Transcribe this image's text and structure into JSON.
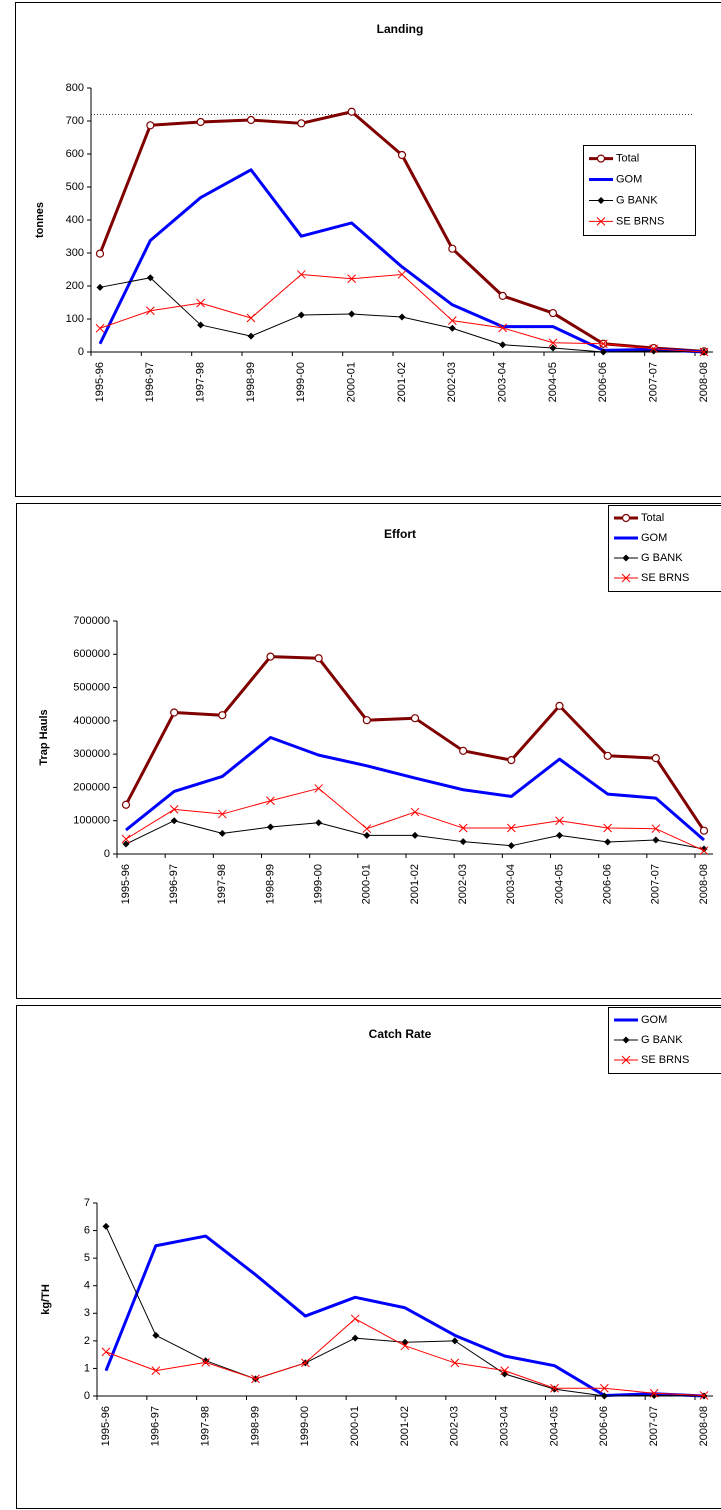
{
  "chart_data": [
    {
      "type": "line",
      "title": "Landing",
      "y_label": "tonnes",
      "categories": [
        "1995-96",
        "1996-97",
        "1997-98",
        "1998-99",
        "1999-00",
        "2000-01",
        "2001-02",
        "2002-03",
        "2003-04",
        "2004-05",
        "2006-06",
        "2007-07",
        "2008-08"
      ],
      "series": [
        {
          "name": "Total",
          "color": "#800000",
          "marker": "circle",
          "values": [
            298,
            687,
            697,
            703,
            693,
            728,
            597,
            313,
            170,
            118,
            25,
            12,
            2
          ]
        },
        {
          "name": "GOM",
          "color": "#0000ff",
          "marker": "none",
          "values": [
            25,
            338,
            468,
            552,
            351,
            391,
            258,
            143,
            77,
            77,
            5,
            8,
            0
          ]
        },
        {
          "name": "G BANK",
          "color": "#000000",
          "marker": "diamond",
          "values": [
            196,
            225,
            82,
            48,
            112,
            115,
            106,
            72,
            22,
            12,
            0,
            3,
            0
          ]
        },
        {
          "name": "SE BRNS",
          "color": "#ff0000",
          "marker": "x",
          "values": [
            72,
            125,
            148,
            103,
            235,
            222,
            235,
            95,
            73,
            28,
            25,
            10,
            0
          ]
        }
      ],
      "hline": 720,
      "ylim": [
        0,
        800
      ],
      "yticks": [
        0,
        100,
        200,
        300,
        400,
        500,
        600,
        700,
        800
      ],
      "legend": "right"
    },
    {
      "type": "line",
      "title": "Effort",
      "y_label": "Trap Hauls",
      "categories": [
        "1995-96",
        "1996-97",
        "1997-98",
        "1998-99",
        "1999-00",
        "2000-01",
        "2001-02",
        "2002-03",
        "2003-04",
        "2004-05",
        "2006-06",
        "2007-07",
        "2008-08"
      ],
      "series": [
        {
          "name": "Total",
          "color": "#800000",
          "marker": "circle",
          "values": [
            148000,
            425000,
            417000,
            593000,
            588000,
            402000,
            408000,
            310000,
            282000,
            445000,
            295000,
            288000,
            70000
          ]
        },
        {
          "name": "GOM",
          "color": "#0000ff",
          "marker": "none",
          "values": [
            72000,
            188000,
            233000,
            350000,
            297000,
            265000,
            228000,
            193000,
            173000,
            285000,
            180000,
            168000,
            42000
          ]
        },
        {
          "name": "G BANK",
          "color": "#000000",
          "marker": "diamond",
          "values": [
            30000,
            100000,
            62000,
            81000,
            94000,
            56000,
            56000,
            37000,
            25000,
            56000,
            36000,
            42000,
            15000
          ]
        },
        {
          "name": "SE BRNS",
          "color": "#ff0000",
          "marker": "x",
          "values": [
            45000,
            134000,
            120000,
            160000,
            197000,
            76000,
            126000,
            78000,
            78000,
            100000,
            78000,
            76000,
            10000
          ]
        }
      ],
      "ylim": [
        0,
        700000
      ],
      "yticks": [
        0,
        100000,
        200000,
        300000,
        400000,
        500000,
        600000,
        700000
      ],
      "legend": "top-right"
    },
    {
      "type": "line",
      "title": "Catch Rate",
      "y_label": "kg/TH",
      "categories": [
        "1995-96",
        "1996-97",
        "1997-98",
        "1998-99",
        "1999-00",
        "2000-01",
        "2001-02",
        "2002-03",
        "2003-04",
        "2004-05",
        "2006-06",
        "2007-07",
        "2008-08"
      ],
      "series": [
        {
          "name": "GOM",
          "color": "#0000ff",
          "marker": "none",
          "values": [
            0.92,
            5.45,
            5.8,
            4.4,
            2.9,
            3.58,
            3.2,
            2.2,
            1.45,
            1.1,
            0.02,
            0.08,
            0
          ]
        },
        {
          "name": "G BANK",
          "color": "#000000",
          "marker": "diamond",
          "values": [
            6.15,
            2.2,
            1.28,
            0.62,
            1.2,
            2.1,
            1.95,
            2.0,
            0.8,
            0.25,
            0,
            0.02,
            0
          ]
        },
        {
          "name": "SE BRNS",
          "color": "#ff0000",
          "marker": "x",
          "values": [
            1.6,
            0.92,
            1.22,
            0.62,
            1.2,
            2.8,
            1.82,
            1.2,
            0.92,
            0.28,
            0.28,
            0.1,
            0.02
          ]
        }
      ],
      "ylim": [
        0,
        7
      ],
      "yticks": [
        0,
        1,
        2,
        3,
        4,
        5,
        6,
        7
      ],
      "legend": "top-right"
    }
  ]
}
